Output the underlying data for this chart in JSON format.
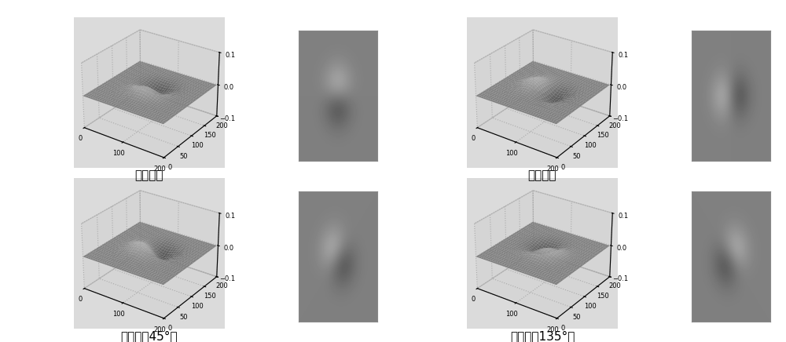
{
  "title_vertical": "垂直方向",
  "title_horizontal": "水平方向",
  "title_45": "斜对角（45°）",
  "title_135": "斜对角（135°）",
  "grid_size": 201,
  "sigma": 25,
  "zlim": [
    -0.1,
    0.1
  ],
  "zticks": [
    -0.1,
    0,
    0.1
  ],
  "background_color": "#ffffff",
  "panel_bg": "#d8d8d8",
  "title_fontsize": 11,
  "tick_fontsize": 6,
  "elev": 28,
  "azim": -55,
  "img_vmin": -0.1,
  "img_vmax": 0.1,
  "surf_vmin": -0.08,
  "surf_vmax": 0.08
}
